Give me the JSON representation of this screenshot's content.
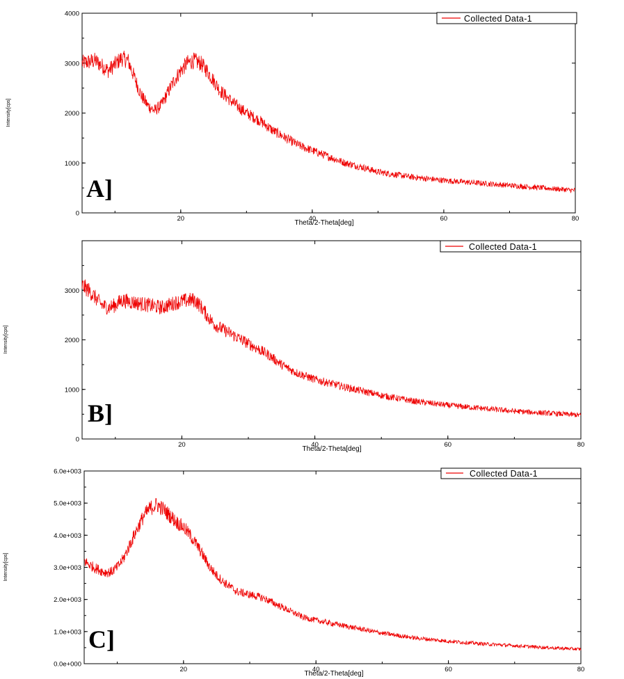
{
  "chart_data": [
    {
      "type": "line",
      "panel_label": "A]",
      "xlabel": "Theta/2-Theta[deg]",
      "ylabel": "Intensity[cps]",
      "xlim": [
        5,
        80
      ],
      "ylim": [
        0,
        4000
      ],
      "x_ticks": [
        "20",
        "40",
        "60",
        "80"
      ],
      "y_ticks": [
        "0",
        "1000",
        "2000",
        "3000",
        "4000"
      ],
      "legend": {
        "label": "Collected Data-1",
        "position": "top-right"
      },
      "grid": false,
      "color": "#ee0000",
      "series": [
        {
          "name": "Collected Data-1",
          "x": [
            5,
            7,
            9,
            11,
            12,
            13,
            14,
            15,
            16,
            17,
            18,
            19,
            20,
            21,
            22,
            23,
            24,
            25,
            26,
            28,
            30,
            32,
            34,
            36,
            38,
            40,
            42,
            45,
            48,
            50,
            55,
            60,
            65,
            70,
            75,
            80
          ],
          "y": [
            3000,
            3050,
            2850,
            3100,
            3050,
            2700,
            2350,
            2150,
            2050,
            2150,
            2400,
            2650,
            2850,
            3000,
            3050,
            3000,
            2850,
            2650,
            2450,
            2200,
            2000,
            1850,
            1650,
            1500,
            1350,
            1250,
            1150,
            1000,
            900,
            820,
            720,
            650,
            600,
            550,
            500,
            450
          ]
        }
      ]
    },
    {
      "type": "line",
      "panel_label": "B]",
      "xlabel": "Theta/2-Theta[deg]",
      "ylabel": "Intensity[cps]",
      "xlim": [
        5,
        80
      ],
      "ylim": [
        0,
        4000
      ],
      "x_ticks": [
        "20",
        "40",
        "60",
        "80"
      ],
      "y_ticks": [
        "0",
        "1000",
        "2000",
        "3000"
      ],
      "legend": {
        "label": "Collected Data-1",
        "position": "top-right"
      },
      "grid": false,
      "color": "#ee0000",
      "series": [
        {
          "name": "Collected Data-1",
          "x": [
            5,
            6,
            7,
            8,
            9,
            10,
            11,
            13,
            15,
            17,
            19,
            21,
            22,
            23,
            24,
            25,
            27,
            29,
            31,
            33,
            35,
            37,
            40,
            43,
            46,
            50,
            55,
            60,
            65,
            70,
            75,
            80
          ],
          "y": [
            3100,
            3000,
            2850,
            2700,
            2650,
            2700,
            2800,
            2750,
            2700,
            2650,
            2750,
            2800,
            2800,
            2650,
            2450,
            2300,
            2150,
            2000,
            1850,
            1700,
            1500,
            1350,
            1200,
            1100,
            1000,
            880,
            760,
            680,
            620,
            560,
            520,
            480
          ]
        }
      ]
    },
    {
      "type": "line",
      "panel_label": "C]",
      "xlabel": "Theta/2-Theta[deg]",
      "ylabel": "Intensity[cps]",
      "xlim": [
        5,
        80
      ],
      "ylim": [
        0,
        6000
      ],
      "x_ticks": [
        "20",
        "40",
        "60",
        "80"
      ],
      "y_ticks": [
        "0.0e+000",
        "1.0e+003",
        "2.0e+003",
        "3.0e+003",
        "4.0e+003",
        "5.0e+003",
        "6.0e+003"
      ],
      "legend": {
        "label": "Collected Data-1",
        "position": "top-right"
      },
      "grid": false,
      "color": "#ee0000",
      "series": [
        {
          "name": "Collected Data-1",
          "x": [
            5,
            6,
            7,
            8,
            9,
            10,
            11,
            12,
            13,
            14,
            15,
            16,
            17,
            18,
            19,
            20,
            21,
            22,
            23,
            24,
            25,
            26,
            27,
            28,
            30,
            32,
            34,
            36,
            38,
            40,
            45,
            50,
            55,
            60,
            65,
            70,
            75,
            80
          ],
          "y": [
            3200,
            3050,
            2950,
            2850,
            2850,
            3000,
            3300,
            3750,
            4200,
            4600,
            4850,
            4950,
            4800,
            4600,
            4400,
            4250,
            4000,
            3700,
            3350,
            3000,
            2750,
            2550,
            2400,
            2250,
            2150,
            2050,
            1850,
            1650,
            1450,
            1350,
            1150,
            950,
            800,
            700,
            620,
            560,
            500,
            450
          ]
        }
      ]
    }
  ]
}
